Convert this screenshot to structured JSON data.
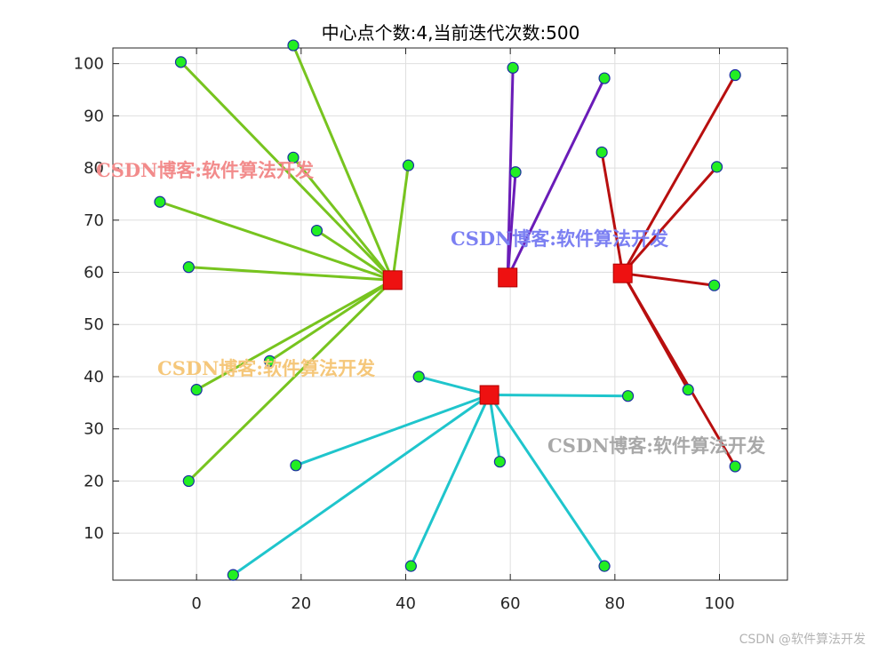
{
  "chart_data": {
    "type": "scatter",
    "title": "中心点个数:4,当前迭代次数:500",
    "xlim": [
      -16,
      113
    ],
    "ylim": [
      1,
      103
    ],
    "xticks": [
      0,
      20,
      40,
      60,
      80,
      100
    ],
    "yticks": [
      10,
      20,
      30,
      40,
      50,
      60,
      70,
      80,
      90,
      100
    ],
    "grid": true,
    "clusters": [
      {
        "color": "#77c41f",
        "center": [
          37.5,
          58.5
        ],
        "points": [
          [
            -3,
            100.3
          ],
          [
            18.5,
            103.5
          ],
          [
            18.5,
            82
          ],
          [
            40.5,
            80.5
          ],
          [
            -7,
            73.5
          ],
          [
            23,
            68
          ],
          [
            -1.5,
            61
          ],
          [
            14,
            43
          ],
          [
            0,
            37.5
          ],
          [
            -1.5,
            20
          ]
        ]
      },
      {
        "color": "#6a1cb8",
        "center": [
          59.5,
          59
        ],
        "points": [
          [
            60.5,
            99.2
          ],
          [
            78,
            97.2
          ],
          [
            61,
            79.2
          ]
        ]
      },
      {
        "color": "#b80f0f",
        "center": [
          81.5,
          59.8
        ],
        "points": [
          [
            103,
            97.8
          ],
          [
            77.5,
            83
          ],
          [
            99.5,
            80.2
          ],
          [
            99,
            57.5
          ],
          [
            94,
            37.5
          ],
          [
            103,
            22.8
          ]
        ]
      },
      {
        "color": "#1fc5cc",
        "center": [
          56,
          36.5
        ],
        "points": [
          [
            42.5,
            40
          ],
          [
            82.5,
            36.3
          ],
          [
            58,
            23.7
          ],
          [
            19,
            23
          ],
          [
            41,
            3.7
          ],
          [
            78,
            3.7
          ],
          [
            7,
            2
          ]
        ]
      }
    ],
    "point_color": "#22ee22",
    "point_edge": "#1a2fa0",
    "center_color": "#ee1111"
  },
  "watermarks": [
    {
      "text": "CSDN博客:软件算法开发",
      "color": "#f28b8b"
    },
    {
      "text": "CSDN博客:软件算法开发",
      "color": "#7b7ff2"
    },
    {
      "text": "CSDN博客:软件算法开发",
      "color": "#f5c77a"
    },
    {
      "text": "CSDN博客:软件算法开发",
      "color": "#a8a8a8"
    }
  ],
  "credit": "CSDN @软件算法开发"
}
